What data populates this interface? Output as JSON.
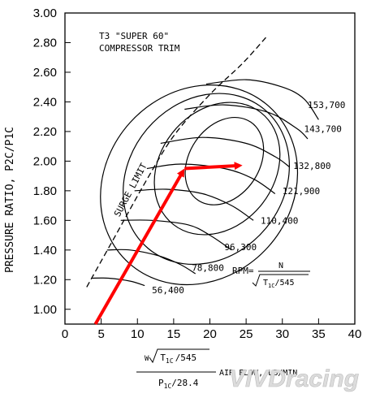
{
  "chart_data": {
    "type": "line",
    "title": "T3 \"SUPER 60\"",
    "subtitle": "COMPRESSOR TRIM",
    "ylabel": "PRESSURE RATIO, P2C/P1C",
    "xlabel": {
      "numerator_w": "W",
      "numerator_t": "T",
      "numerator_t_sub": "1C",
      "numerator_const": "/545",
      "denominator_p": "P",
      "denominator_p_sub": "1C",
      "denominator_const": "/28.4",
      "suffix": "AIR FLOW, LB/MIN"
    },
    "rpm_formula": {
      "label": "RPM=",
      "numerator": "N",
      "den_t": "T",
      "den_sub": "1C",
      "den_const": "/545"
    },
    "xlim": [
      0,
      40
    ],
    "ylim": [
      0.9,
      3.0
    ],
    "x_ticks": [
      0,
      5,
      10,
      15,
      20,
      25,
      30,
      35,
      40
    ],
    "y_ticks": [
      "1.00",
      "1.20",
      "1.40",
      "1.60",
      "1.80",
      "2.00",
      "2.20",
      "2.40",
      "2.60",
      "2.80",
      "3.00"
    ],
    "surge_limit_label": "SURGE LIMIT",
    "surge_line": [
      [
        3,
        1.15
      ],
      [
        7,
        1.5
      ],
      [
        11,
        1.85
      ],
      [
        15,
        2.17
      ],
      [
        20,
        2.45
      ],
      [
        24.5,
        2.66
      ],
      [
        28,
        2.85
      ]
    ],
    "speed_lines": [
      {
        "name": "56,400",
        "points": [
          [
            3.7,
            1.21
          ],
          [
            6,
            1.21
          ],
          [
            9,
            1.19
          ],
          [
            11,
            1.16
          ]
        ]
      },
      {
        "name": "78,800",
        "points": [
          [
            5.8,
            1.4
          ],
          [
            9,
            1.4
          ],
          [
            13,
            1.36
          ],
          [
            16,
            1.3
          ],
          [
            18,
            1.24
          ]
        ]
      },
      {
        "name": "96,300",
        "points": [
          [
            7.7,
            1.6
          ],
          [
            12,
            1.6
          ],
          [
            17,
            1.57
          ],
          [
            20,
            1.5
          ],
          [
            23,
            1.4
          ]
        ]
      },
      {
        "name": "110,400",
        "points": [
          [
            9.6,
            1.8
          ],
          [
            14,
            1.81
          ],
          [
            19,
            1.78
          ],
          [
            23,
            1.7
          ],
          [
            26,
            1.6
          ]
        ]
      },
      {
        "name": "121,900",
        "points": [
          [
            11.3,
            1.95
          ],
          [
            16,
            1.98
          ],
          [
            22,
            1.95
          ],
          [
            26,
            1.88
          ],
          [
            29,
            1.78
          ]
        ]
      },
      {
        "name": "132,800",
        "points": [
          [
            13.2,
            2.12
          ],
          [
            19,
            2.16
          ],
          [
            25,
            2.12
          ],
          [
            29,
            2.03
          ],
          [
            31,
            1.96
          ]
        ]
      },
      {
        "name": "143,700",
        "points": [
          [
            16.5,
            2.35
          ],
          [
            22,
            2.38
          ],
          [
            28,
            2.33
          ],
          [
            32,
            2.22
          ],
          [
            33.5,
            2.15
          ]
        ]
      },
      {
        "name": "153,700",
        "points": [
          [
            19.5,
            2.52
          ],
          [
            25,
            2.55
          ],
          [
            30,
            2.5
          ],
          [
            33,
            2.42
          ],
          [
            35,
            2.28
          ]
        ]
      }
    ],
    "rpm_label_positions": {
      "56,400": [
        12,
        1.13
      ],
      "78,800": [
        17.5,
        1.28
      ],
      "96,300": [
        22,
        1.42
      ],
      "110,400": [
        27,
        1.6
      ],
      "121,900": [
        30,
        1.8
      ],
      "132,800": [
        31.5,
        1.97
      ],
      "143,700": [
        33,
        2.22
      ],
      "153,700": [
        33.5,
        2.38
      ]
    },
    "efficiency_islands": [
      {
        "cx": 22.0,
        "cy": 2.0,
        "rx": 6.5,
        "ry": 0.52,
        "rot": -56
      },
      {
        "cx": 21.0,
        "cy": 1.95,
        "rx": 9.8,
        "ry": 0.85,
        "rot": -52
      },
      {
        "cx": 19.5,
        "cy": 1.88,
        "rx": 12.5,
        "ry": 1.15,
        "rot": -50
      },
      {
        "cx": 18.5,
        "cy": 1.84,
        "rx": 14.5,
        "ry": 1.38,
        "rot": -48
      }
    ],
    "arrow_path": [
      [
        4.2,
        0.9
      ],
      [
        16.5,
        1.95
      ],
      [
        24.5,
        1.97
      ]
    ],
    "arrow_color": "#ff0000"
  },
  "watermark": "VIVDracing"
}
